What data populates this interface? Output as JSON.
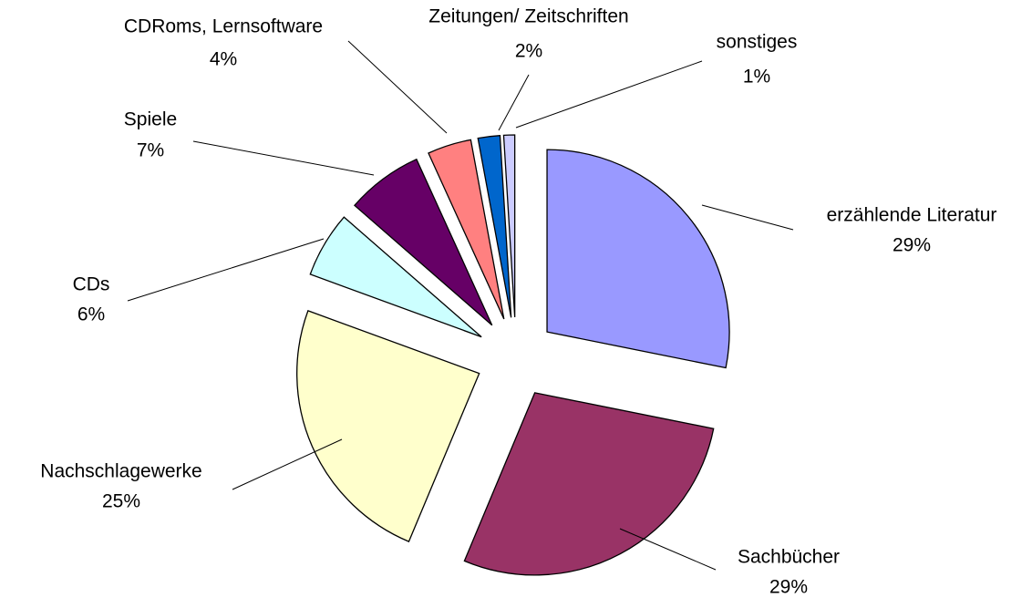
{
  "chart_data": {
    "type": "pie",
    "categories": [
      "erzählende Literatur",
      "Sachbücher",
      "Nachschlagewerke",
      "CDs",
      "Spiele",
      "CDRoms, Lernsoftware",
      "Zeitungen/ Zeitschriften",
      "sonstiges"
    ],
    "values": [
      29,
      29,
      25,
      6,
      7,
      4,
      2,
      1
    ],
    "value_labels": [
      "29%",
      "29%",
      "25%",
      "6%",
      "7%",
      "4%",
      "2%",
      "1%"
    ],
    "colors": [
      "#9999ff",
      "#993366",
      "#ffffcc",
      "#ccffff",
      "#660066",
      "#ff8080",
      "#0066cc",
      "#ccccff"
    ]
  }
}
